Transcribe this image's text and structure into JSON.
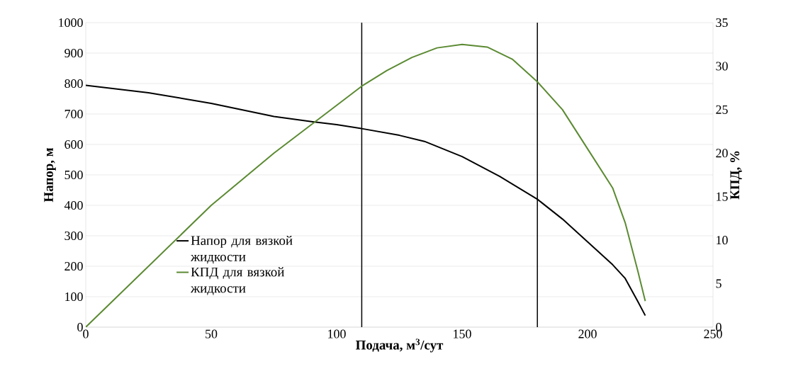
{
  "chart_data": {
    "type": "line",
    "xlabel": "Подача, м$^{3}$/сут",
    "ylabel": "Напор, м",
    "y2label": "КПД, %",
    "xlim": [
      0,
      250
    ],
    "xticks": [
      0,
      50,
      100,
      150,
      200,
      250
    ],
    "ylim": [
      0,
      1000
    ],
    "yticks": [
      0,
      100,
      200,
      300,
      400,
      500,
      600,
      700,
      800,
      900,
      1000
    ],
    "y2lim": [
      0,
      35
    ],
    "y2ticks": [
      0,
      5,
      10,
      15,
      20,
      25,
      30,
      35
    ],
    "grid": "y",
    "legend": "bottom left",
    "marker": "none",
    "line_style": "solid",
    "series": [
      {
        "name": "Напор для вязкой жидкости",
        "color": "#000000",
        "x": [
          0,
          25,
          50,
          75,
          90,
          100,
          110,
          125,
          135,
          150,
          165,
          180,
          190,
          200,
          210,
          215,
          220,
          223
        ],
        "values": [
          794,
          770,
          735,
          692,
          675,
          665,
          652,
          630,
          610,
          560,
          495,
          420,
          355,
          280,
          205,
          160,
          85,
          38
        ]
      },
      {
        "name": "КПД для вязкой жидкости",
        "color": "#5b8a32",
        "axis": "y2",
        "x": [
          0,
          25,
          50,
          75,
          90,
          100,
          110,
          120,
          130,
          140,
          150,
          160,
          170,
          180,
          190,
          200,
          210,
          215,
          220,
          223
        ],
        "values": [
          0,
          7,
          14,
          20,
          23.3,
          25.5,
          27.7,
          29.5,
          31,
          32.1,
          32.5,
          32.2,
          30.8,
          28.2,
          25,
          20.5,
          16,
          12,
          6.5,
          3
        ]
      }
    ],
    "ref_lines": [
      {
        "axis": "x",
        "value": 110,
        "color": "#000000"
      },
      {
        "axis": "x",
        "value": 180,
        "color": "#000000"
      }
    ]
  }
}
